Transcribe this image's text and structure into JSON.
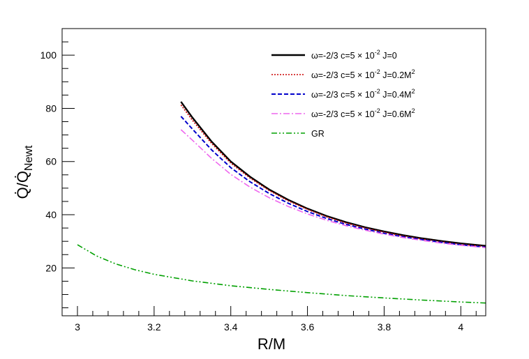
{
  "chart_data": {
    "type": "line",
    "xlabel": "R/M",
    "ylabel": "Q̇/Q̇",
    "ylabel_sub": "Newt",
    "xlim": [
      2.96,
      4.065
    ],
    "ylim": [
      2,
      110
    ],
    "x_ticks": [
      3,
      3.2,
      3.4,
      3.6,
      3.8,
      4
    ],
    "x_tick_labels": [
      "3",
      "3.2",
      "3.4",
      "3.6",
      "3.8",
      "4"
    ],
    "y_ticks": [
      20,
      40,
      60,
      80,
      100
    ],
    "y_tick_labels": [
      "20",
      "40",
      "60",
      "80",
      "100"
    ],
    "legend_position": "top-right",
    "series": [
      {
        "name": "ω=-2/3 c=5 × 10⁻² J=0",
        "label_main": "ω=-2/3 c=5 × 10",
        "label_exp": "-2",
        "label_tail": " J=0",
        "label_tail_exp": "",
        "color": "#000000",
        "style": "solid",
        "x": [
          3.27,
          3.3,
          3.35,
          3.4,
          3.45,
          3.5,
          3.55,
          3.6,
          3.65,
          3.7,
          3.75,
          3.8,
          3.85,
          3.9,
          3.95,
          4.0,
          4.065
        ],
        "y": [
          82.5,
          76.5,
          67.5,
          60.0,
          54.3,
          49.5,
          45.6,
          42.3,
          39.5,
          37.2,
          35.3,
          33.7,
          32.3,
          31.1,
          30.1,
          29.2,
          28.3
        ]
      },
      {
        "name": "ω=-2/3 c=5 × 10⁻² J=0.2M²",
        "label_main": "ω=-2/3 c=5 × 10",
        "label_exp": "-2",
        "label_tail": " J=0.2M",
        "label_tail_exp": "2",
        "color": "#cc0000",
        "style": "dotted",
        "x": [
          3.27,
          3.3,
          3.35,
          3.4,
          3.45,
          3.5,
          3.55,
          3.6,
          3.65,
          3.7,
          3.75,
          3.8,
          3.85,
          3.9,
          3.95,
          4.0,
          4.065
        ],
        "y": [
          81.3,
          75.5,
          66.8,
          59.4,
          53.8,
          49.1,
          45.2,
          42.0,
          39.2,
          36.9,
          35.0,
          33.4,
          32.0,
          30.8,
          29.8,
          28.9,
          28.0
        ]
      },
      {
        "name": "ω=-2/3 c=5 × 10⁻² J=0.4M²",
        "label_main": "ω=-2/3 c=5 × 10",
        "label_exp": "-2",
        "label_tail": " J=0.4M",
        "label_tail_exp": "2",
        "color": "#0000cc",
        "style": "dashed",
        "x": [
          3.27,
          3.3,
          3.35,
          3.4,
          3.45,
          3.5,
          3.55,
          3.6,
          3.65,
          3.7,
          3.75,
          3.8,
          3.85,
          3.9,
          3.95,
          4.0,
          4.065
        ],
        "y": [
          77.0,
          72.2,
          64.4,
          57.7,
          52.4,
          48.0,
          44.3,
          41.2,
          38.6,
          36.4,
          34.6,
          33.0,
          31.7,
          30.6,
          29.6,
          28.7,
          27.8
        ]
      },
      {
        "name": "ω=-2/3 c=5 × 10⁻² J=0.6M²",
        "label_main": "ω=-2/3 c=5 × 10",
        "label_exp": "-2",
        "label_tail": " J=0.6M",
        "label_tail_exp": "2",
        "color": "#ee66ee",
        "style": "dashdot",
        "x": [
          3.27,
          3.3,
          3.35,
          3.4,
          3.45,
          3.5,
          3.55,
          3.6,
          3.65,
          3.7,
          3.75,
          3.8,
          3.85,
          3.9,
          3.95,
          4.0,
          4.065
        ],
        "y": [
          72.0,
          68.0,
          61.2,
          55.2,
          50.4,
          46.4,
          43.1,
          40.3,
          37.9,
          35.9,
          34.2,
          32.7,
          31.4,
          30.3,
          29.3,
          28.5,
          27.6
        ]
      },
      {
        "name": "GR",
        "label_main": "GR",
        "label_exp": "",
        "label_tail": "",
        "label_tail_exp": "",
        "color": "#00a000",
        "style": "dashdotdot",
        "x": [
          3.0,
          3.05,
          3.1,
          3.15,
          3.2,
          3.3,
          3.4,
          3.5,
          3.6,
          3.7,
          3.8,
          3.9,
          4.0,
          4.065
        ],
        "y": [
          28.7,
          24.5,
          21.5,
          19.3,
          17.6,
          15.1,
          13.3,
          11.9,
          10.7,
          9.6,
          8.7,
          7.9,
          7.2,
          6.8
        ]
      }
    ]
  }
}
